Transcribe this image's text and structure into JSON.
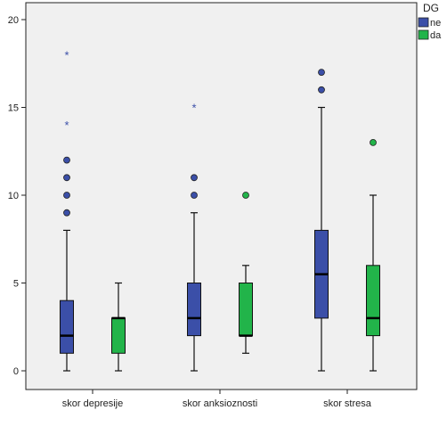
{
  "chart_data": {
    "type": "boxplot",
    "title": "",
    "xlabel": "",
    "ylabel": "",
    "ylim": [
      -1,
      21
    ],
    "yticks": [
      0,
      5,
      10,
      15,
      20
    ],
    "categories": [
      "skor depresije",
      "skor anksioznosti",
      "skor stresa"
    ],
    "legend": {
      "title": "DG",
      "placement": "top-right",
      "entries": [
        {
          "label": "ne",
          "color": "#3b4fa8"
        },
        {
          "label": "da",
          "color": "#22b44a"
        }
      ]
    },
    "grid": false,
    "background": "#f0f0f0",
    "series": [
      {
        "name": "ne",
        "color": "#3b4fa8",
        "boxes": [
          {
            "whisker_low": 0,
            "q1": 1,
            "median": 2,
            "q3": 4,
            "whisker_high": 8,
            "outliers": [
              9,
              10,
              11,
              12
            ],
            "extremes": [
              14,
              18
            ]
          },
          {
            "whisker_low": 0,
            "q1": 2,
            "median": 3,
            "q3": 5,
            "whisker_high": 9,
            "outliers": [
              10,
              11
            ],
            "extremes": [
              15
            ]
          },
          {
            "whisker_low": 0,
            "q1": 3,
            "median": 5.5,
            "q3": 8,
            "whisker_high": 15,
            "outliers": [
              16,
              17
            ],
            "extremes": []
          }
        ]
      },
      {
        "name": "da",
        "color": "#22b44a",
        "boxes": [
          {
            "whisker_low": 0,
            "q1": 1,
            "median": 3,
            "q3": 3,
            "whisker_high": 5,
            "outliers": [],
            "extremes": []
          },
          {
            "whisker_low": 1,
            "q1": 2,
            "median": 2,
            "q3": 5,
            "whisker_high": 6,
            "outliers": [
              10
            ],
            "extremes": []
          },
          {
            "whisker_low": 0,
            "q1": 2,
            "median": 3,
            "q3": 6,
            "whisker_high": 10,
            "outliers": [
              13
            ],
            "extremes": []
          }
        ]
      }
    ]
  }
}
